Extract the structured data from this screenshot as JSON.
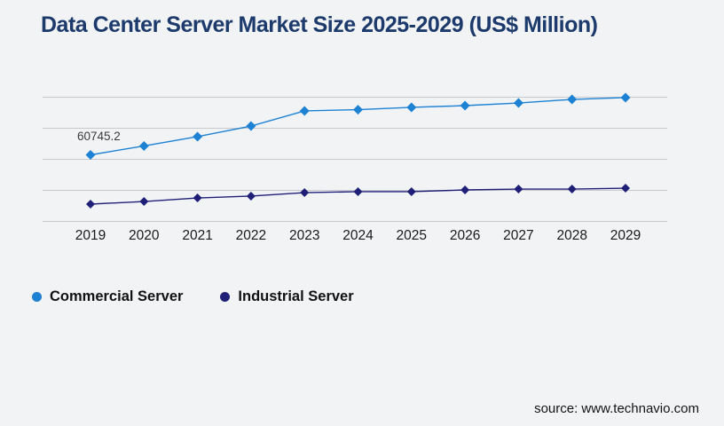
{
  "page": {
    "background_color": "#f2f3f5",
    "gridline_color": "#c9c9cd",
    "text_color": "#1a1a1a"
  },
  "header": {
    "title": "Data Center Server Market Size 2025-2029 (US$ Million)",
    "title_color": "#1c3a6b"
  },
  "chart_data": {
    "type": "line",
    "title": "Data Center Server Market Size 2025-2029 (US$ Million)",
    "x": [
      "2019",
      "2020",
      "2021",
      "2022",
      "2023",
      "2024",
      "2025",
      "2026",
      "2027",
      "2028",
      "2029"
    ],
    "series": [
      {
        "name": "Commercial Server",
        "color": "#1d82d3",
        "marker": "diamond",
        "values": [
          60745.2,
          68850,
          77350,
          87050,
          100850,
          102000,
          104100,
          105700,
          108100,
          111350,
          113000
        ]
      },
      {
        "name": "Industrial Server",
        "color": "#1f1f78",
        "marker": "diamond",
        "values": [
          15800,
          18200,
          21450,
          23100,
          26300,
          27150,
          27150,
          28750,
          29550,
          29550,
          30350
        ]
      }
    ],
    "point_label": {
      "series": "Commercial Server",
      "x": "2019",
      "text": "60745.2"
    },
    "ylim": [
      0,
      113390
    ],
    "y_axis_labels_visible": false,
    "grid": "horizontal",
    "gridline_count": 5,
    "legend_position": "bottom-left"
  },
  "footer": {
    "source": "source: www.technavio.com"
  }
}
